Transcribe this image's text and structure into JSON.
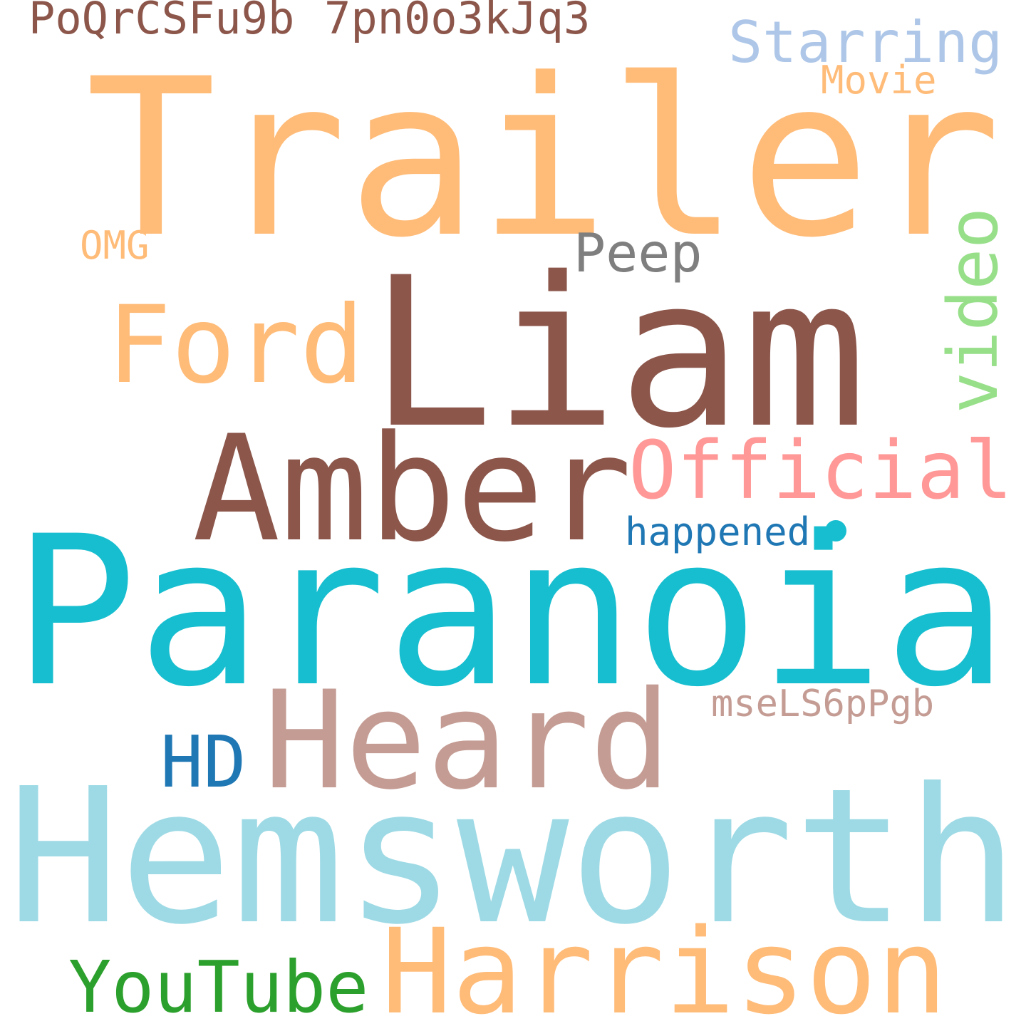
{
  "colors": {
    "orange_light": "#ffbb78",
    "brown": "#8c564b",
    "cyan": "#17becf",
    "cyan_light": "#9edae5",
    "rose_brown": "#c49c94",
    "blue": "#1f77b4",
    "blue_light": "#aec7e8",
    "green": "#2ca02c",
    "green_light": "#98df8a",
    "pink": "#ff9896",
    "gray": "#7f7f7f",
    "background": "#ffffff"
  },
  "words": {
    "trailer": "Trailer",
    "liam": "Liam",
    "paranoia": "Paranoia",
    "hemsworth": "Hemsworth",
    "amber": "Amber",
    "heard": "Heard",
    "harrison": "Harrison",
    "ford": "Ford",
    "official": "Official",
    "youtube": "YouTube",
    "hd": "HD",
    "video": "video",
    "starring": "Starring",
    "peep": "Peep",
    "poqr": "PoQrCSFu9b",
    "id_7pn": "7pn0o3kJq3",
    "msel": "mseLS6pPgb",
    "happened": "happened",
    "movie": "Movie",
    "omg": "OMG"
  }
}
